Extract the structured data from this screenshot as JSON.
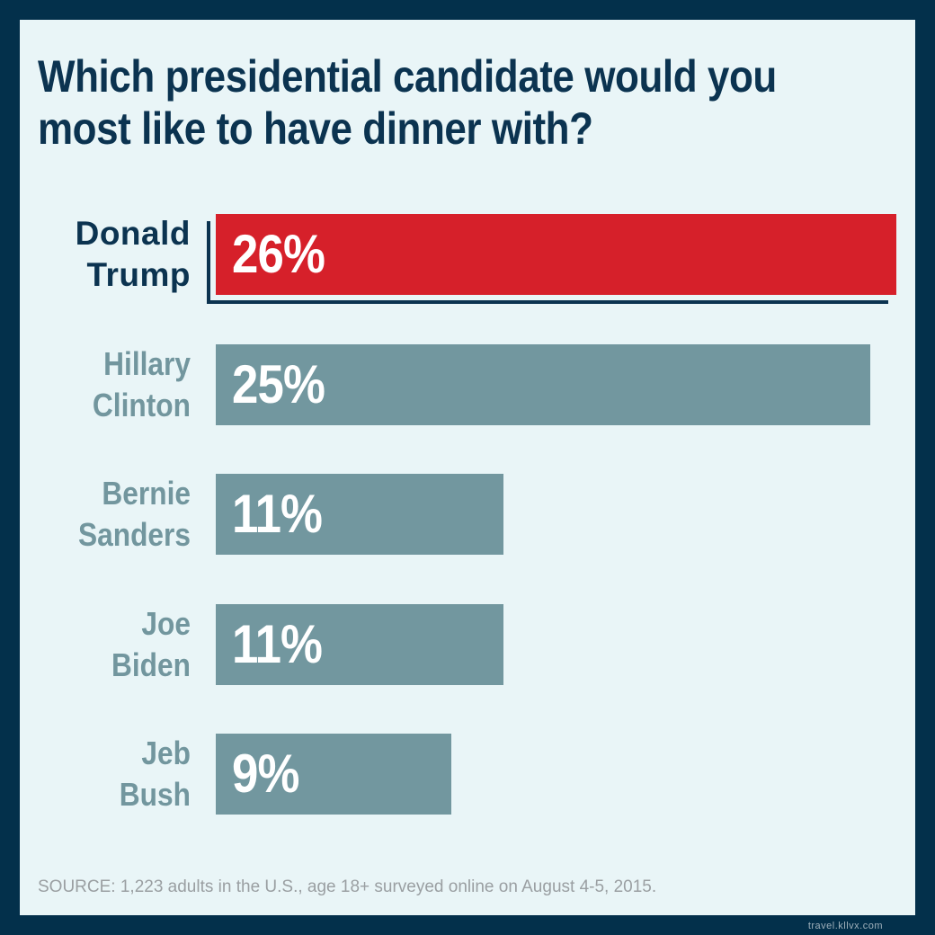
{
  "chart_data": {
    "type": "bar",
    "orientation": "horizontal",
    "title": "Which presidential candidate would you most like to have dinner with?",
    "title_lines": [
      "Which presidential candidate would you",
      "most like to have dinner with?"
    ],
    "categories": [
      "Donald Trump",
      "Hillary Clinton",
      "Bernie Sanders",
      "Joe Biden",
      "Jeb Bush"
    ],
    "category_lines": [
      [
        "Donald",
        "Trump"
      ],
      [
        "Hillary",
        "Clinton"
      ],
      [
        "Bernie",
        "Sanders"
      ],
      [
        "Joe",
        "Biden"
      ],
      [
        "Jeb",
        "Bush"
      ]
    ],
    "values": [
      26,
      25,
      11,
      11,
      9
    ],
    "data_labels": [
      "26%",
      "25%",
      "11%",
      "11%",
      "9%"
    ],
    "unit": "%",
    "highlight": "Donald Trump",
    "colors": {
      "highlight": "#d6202a",
      "default": "#72979f",
      "frame": "#03304b",
      "background": "#e9f5f7",
      "title": "#0b3350"
    },
    "grid": false,
    "source": "SOURCE: 1,223 adults in the U.S., age 18+ surveyed online on August 4-5, 2015."
  },
  "watermark": "travel.kllvx.com"
}
